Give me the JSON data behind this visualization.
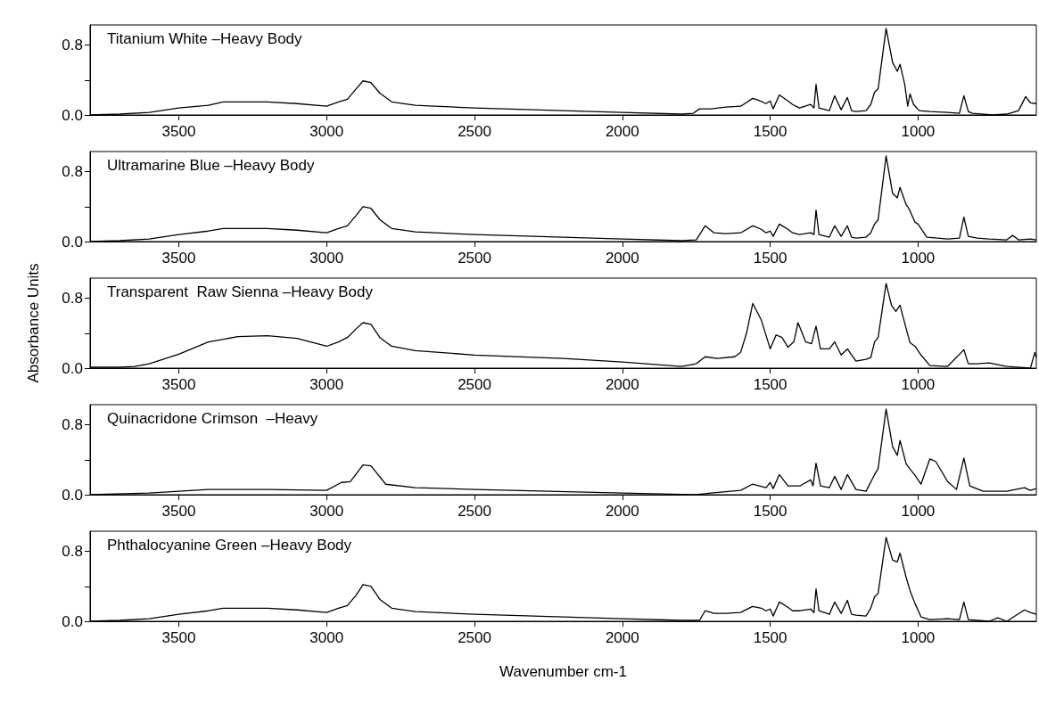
{
  "chart_data": [
    {
      "type": "line",
      "title": "Titanium White –Heavy Body",
      "color": "#000000",
      "xlim": [
        3800,
        600
      ],
      "xticks": [
        3500,
        3000,
        2500,
        2000,
        1500,
        1000
      ],
      "ylim": [
        0,
        1.03
      ],
      "yticks": [
        {
          "value": 0,
          "label": "0.0"
        },
        {
          "value": 0.4,
          "label": null
        },
        {
          "value": 0.8,
          "label": "0.8"
        }
      ],
      "grid": false,
      "x": [
        3800,
        3700,
        3600,
        3500,
        3400,
        3350,
        3200,
        3100,
        3000,
        2960,
        2930,
        2900,
        2877,
        2850,
        2820,
        2780,
        2700,
        2500,
        2200,
        2000,
        1800,
        1760,
        1739,
        1700,
        1650,
        1600,
        1559,
        1540,
        1514,
        1500,
        1490,
        1469,
        1440,
        1424,
        1401,
        1363,
        1352,
        1345,
        1335,
        1300,
        1282,
        1260,
        1239,
        1225,
        1210,
        1176,
        1160,
        1147,
        1135,
        1108,
        1086,
        1070,
        1061,
        1045,
        1035,
        1027,
        1015,
        996,
        960,
        900,
        860,
        845,
        830,
        816,
        748,
        700,
        660,
        636,
        620,
        600
      ],
      "values": [
        0.0,
        0.01,
        0.03,
        0.08,
        0.11,
        0.15,
        0.15,
        0.13,
        0.1,
        0.15,
        0.18,
        0.3,
        0.39,
        0.37,
        0.25,
        0.15,
        0.11,
        0.08,
        0.05,
        0.03,
        0.01,
        0.02,
        0.07,
        0.07,
        0.09,
        0.1,
        0.19,
        0.17,
        0.13,
        0.16,
        0.07,
        0.23,
        0.16,
        0.12,
        0.08,
        0.12,
        0.08,
        0.35,
        0.08,
        0.05,
        0.22,
        0.06,
        0.2,
        0.05,
        0.04,
        0.05,
        0.12,
        0.26,
        0.3,
        0.99,
        0.6,
        0.5,
        0.58,
        0.35,
        0.1,
        0.24,
        0.12,
        0.05,
        0.04,
        0.03,
        0.02,
        0.22,
        0.04,
        0.02,
        0.0,
        0.01,
        0.05,
        0.21,
        0.14,
        0.13
      ]
    },
    {
      "type": "line",
      "title": "Ultramarine Blue –Heavy Body",
      "color": "#000000",
      "xlim": [
        3800,
        600
      ],
      "xticks": [
        3500,
        3000,
        2500,
        2000,
        1500,
        1000
      ],
      "ylim": [
        0,
        1.03
      ],
      "yticks": [
        {
          "value": 0,
          "label": "0.0"
        },
        {
          "value": 0.4,
          "label": null
        },
        {
          "value": 0.8,
          "label": "0.8"
        }
      ],
      "grid": false,
      "x": [
        3800,
        3700,
        3600,
        3500,
        3400,
        3350,
        3200,
        3100,
        3000,
        2960,
        2930,
        2900,
        2877,
        2850,
        2820,
        2780,
        2700,
        2500,
        2200,
        2000,
        1800,
        1750,
        1720,
        1690,
        1650,
        1600,
        1559,
        1530,
        1514,
        1500,
        1490,
        1469,
        1440,
        1424,
        1401,
        1363,
        1352,
        1345,
        1335,
        1300,
        1282,
        1260,
        1239,
        1225,
        1210,
        1176,
        1160,
        1147,
        1135,
        1108,
        1086,
        1070,
        1061,
        1040,
        1035,
        1027,
        1010,
        1000,
        970,
        900,
        860,
        845,
        830,
        800,
        760,
        700,
        680,
        660,
        620,
        600
      ],
      "values": [
        0.0,
        0.01,
        0.03,
        0.08,
        0.12,
        0.15,
        0.15,
        0.13,
        0.1,
        0.15,
        0.18,
        0.3,
        0.4,
        0.38,
        0.25,
        0.15,
        0.11,
        0.08,
        0.05,
        0.03,
        0.01,
        0.02,
        0.18,
        0.1,
        0.09,
        0.1,
        0.18,
        0.14,
        0.1,
        0.12,
        0.06,
        0.2,
        0.14,
        0.1,
        0.08,
        0.1,
        0.08,
        0.36,
        0.08,
        0.05,
        0.18,
        0.06,
        0.18,
        0.05,
        0.04,
        0.05,
        0.1,
        0.2,
        0.25,
        0.98,
        0.55,
        0.5,
        0.62,
        0.42,
        0.4,
        0.35,
        0.22,
        0.2,
        0.05,
        0.03,
        0.04,
        0.28,
        0.06,
        0.04,
        0.03,
        0.02,
        0.07,
        0.02,
        0.03,
        0.02
      ]
    },
    {
      "type": "line",
      "title": "Transparent  Raw Sienna –Heavy Body",
      "color": "#000000",
      "ylabel": "Absorbance Units",
      "xlim": [
        3800,
        600
      ],
      "xticks": [
        3500,
        3000,
        2500,
        2000,
        1500,
        1000
      ],
      "ylim": [
        0,
        1.03
      ],
      "yticks": [
        {
          "value": 0,
          "label": "0.0"
        },
        {
          "value": 0.4,
          "label": null
        },
        {
          "value": 0.8,
          "label": "0.8"
        }
      ],
      "grid": false,
      "x": [
        3800,
        3700,
        3650,
        3600,
        3500,
        3400,
        3300,
        3200,
        3100,
        3000,
        2960,
        2930,
        2900,
        2877,
        2850,
        2820,
        2780,
        2700,
        2500,
        2200,
        2000,
        1800,
        1750,
        1720,
        1680,
        1620,
        1600,
        1580,
        1559,
        1530,
        1500,
        1480,
        1460,
        1440,
        1420,
        1406,
        1380,
        1360,
        1345,
        1330,
        1300,
        1282,
        1260,
        1239,
        1210,
        1176,
        1160,
        1147,
        1135,
        1108,
        1090,
        1075,
        1061,
        1040,
        1027,
        1010,
        990,
        960,
        900,
        845,
        830,
        800,
        760,
        700,
        620,
        605,
        600
      ],
      "values": [
        0.01,
        0.01,
        0.02,
        0.05,
        0.16,
        0.3,
        0.36,
        0.37,
        0.34,
        0.25,
        0.3,
        0.35,
        0.45,
        0.52,
        0.5,
        0.35,
        0.25,
        0.2,
        0.15,
        0.11,
        0.07,
        0.02,
        0.05,
        0.13,
        0.11,
        0.13,
        0.18,
        0.4,
        0.74,
        0.55,
        0.22,
        0.38,
        0.35,
        0.24,
        0.3,
        0.52,
        0.3,
        0.28,
        0.48,
        0.22,
        0.22,
        0.3,
        0.15,
        0.22,
        0.08,
        0.1,
        0.12,
        0.3,
        0.35,
        0.97,
        0.72,
        0.65,
        0.72,
        0.45,
        0.29,
        0.25,
        0.15,
        0.03,
        0.02,
        0.21,
        0.05,
        0.05,
        0.06,
        0.02,
        0.0,
        0.18,
        0.12
      ]
    },
    {
      "type": "line",
      "title": "Quinacridone Crimson  –Heavy",
      "color": "#000000",
      "xlim": [
        3800,
        600
      ],
      "xticks": [
        3500,
        3000,
        2500,
        2000,
        1500,
        1000
      ],
      "ylim": [
        0,
        1.03
      ],
      "yticks": [
        {
          "value": 0,
          "label": "0.0"
        },
        {
          "value": 0.4,
          "label": null
        },
        {
          "value": 0.8,
          "label": "0.8"
        }
      ],
      "grid": false,
      "x": [
        3800,
        3600,
        3400,
        3200,
        3000,
        2950,
        2920,
        2877,
        2850,
        2800,
        2700,
        2500,
        2000,
        1750,
        1700,
        1600,
        1560,
        1514,
        1500,
        1490,
        1469,
        1440,
        1400,
        1363,
        1355,
        1345,
        1330,
        1300,
        1282,
        1260,
        1239,
        1210,
        1176,
        1147,
        1135,
        1108,
        1086,
        1070,
        1061,
        1040,
        1010,
        990,
        960,
        940,
        900,
        870,
        845,
        825,
        780,
        700,
        640,
        620,
        600
      ],
      "values": [
        0.0,
        0.02,
        0.06,
        0.06,
        0.05,
        0.14,
        0.15,
        0.34,
        0.33,
        0.12,
        0.08,
        0.06,
        0.02,
        0.0,
        0.02,
        0.05,
        0.12,
        0.08,
        0.14,
        0.07,
        0.23,
        0.1,
        0.1,
        0.17,
        0.1,
        0.36,
        0.1,
        0.08,
        0.21,
        0.06,
        0.23,
        0.06,
        0.04,
        0.23,
        0.3,
        0.98,
        0.55,
        0.45,
        0.62,
        0.35,
        0.22,
        0.12,
        0.41,
        0.38,
        0.15,
        0.06,
        0.42,
        0.1,
        0.04,
        0.04,
        0.08,
        0.05,
        0.07
      ]
    },
    {
      "type": "line",
      "title": "Phthalocyanine Green –Heavy Body",
      "color": "#000000",
      "xlabel": "Wavenumber cm-1",
      "xlim": [
        3800,
        600
      ],
      "xticks": [
        3500,
        3000,
        2500,
        2000,
        1500,
        1000
      ],
      "ylim": [
        0,
        1.03
      ],
      "yticks": [
        {
          "value": 0,
          "label": "0.0"
        },
        {
          "value": 0.4,
          "label": null
        },
        {
          "value": 0.8,
          "label": "0.8"
        }
      ],
      "grid": false,
      "x": [
        3800,
        3700,
        3600,
        3500,
        3400,
        3350,
        3200,
        3100,
        3000,
        2960,
        2930,
        2900,
        2877,
        2850,
        2820,
        2780,
        2700,
        2500,
        2200,
        2000,
        1800,
        1739,
        1720,
        1690,
        1650,
        1600,
        1560,
        1530,
        1514,
        1500,
        1490,
        1469,
        1440,
        1424,
        1400,
        1363,
        1352,
        1345,
        1335,
        1300,
        1282,
        1260,
        1239,
        1225,
        1210,
        1176,
        1160,
        1147,
        1135,
        1108,
        1086,
        1070,
        1061,
        1040,
        1027,
        1010,
        990,
        960,
        900,
        860,
        845,
        830,
        760,
        730,
        700,
        640,
        620,
        600
      ],
      "values": [
        0.0,
        0.01,
        0.03,
        0.08,
        0.12,
        0.15,
        0.15,
        0.13,
        0.1,
        0.15,
        0.18,
        0.3,
        0.42,
        0.4,
        0.25,
        0.15,
        0.11,
        0.08,
        0.05,
        0.03,
        0.01,
        0.01,
        0.12,
        0.09,
        0.09,
        0.1,
        0.17,
        0.15,
        0.12,
        0.14,
        0.06,
        0.22,
        0.16,
        0.12,
        0.12,
        0.14,
        0.1,
        0.37,
        0.12,
        0.08,
        0.22,
        0.09,
        0.24,
        0.08,
        0.07,
        0.06,
        0.15,
        0.28,
        0.32,
        0.96,
        0.7,
        0.68,
        0.78,
        0.5,
        0.35,
        0.2,
        0.05,
        0.02,
        0.03,
        0.02,
        0.22,
        0.02,
        0.0,
        0.04,
        0.0,
        0.13,
        0.1,
        0.08
      ]
    }
  ]
}
